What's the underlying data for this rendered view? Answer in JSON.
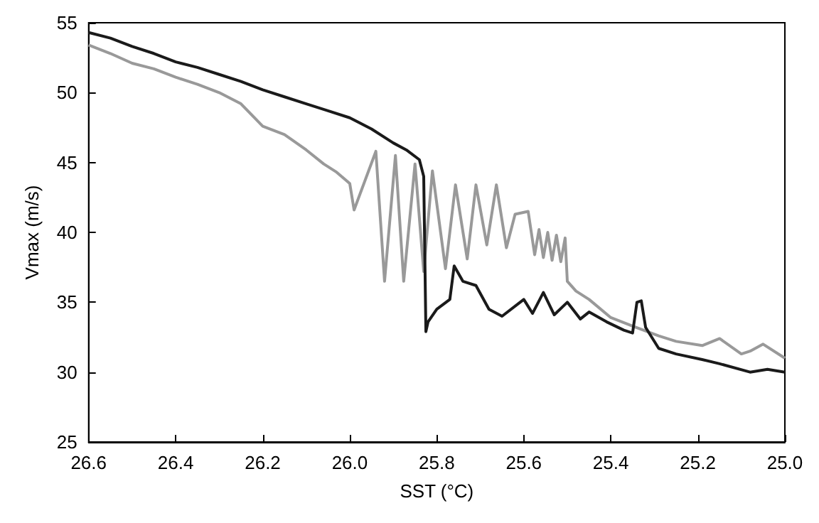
{
  "chart_data": {
    "type": "line",
    "xlabel": "SST (°C)",
    "ylabel": "Vmax (m/s)",
    "xlim": [
      26.6,
      25.0
    ],
    "ylim": [
      25,
      55
    ],
    "xticks": [
      26.6,
      26.4,
      26.2,
      {
        "value": 26,
        "label": "26.0"
      },
      25.8,
      25.6,
      25.4,
      25.2,
      {
        "value": 25,
        "label": "25.0"
      }
    ],
    "yticks": [
      25,
      30,
      35,
      40,
      45,
      50,
      55
    ],
    "series": [
      {
        "color": "#999999",
        "x": [
          26.6,
          26.55,
          26.5,
          26.45,
          26.4,
          26.35,
          26.3,
          26.25,
          26.2,
          26.15,
          26.1,
          26.06,
          26.03,
          26.0,
          25.99,
          25.94,
          25.92,
          25.895,
          25.876,
          25.85,
          25.83,
          25.81,
          25.78,
          25.757,
          25.73,
          25.71,
          25.685,
          25.663,
          25.64,
          25.62,
          25.59,
          25.575,
          25.565,
          25.555,
          25.545,
          25.535,
          25.525,
          25.515,
          25.505,
          25.5,
          25.48,
          25.45,
          25.4,
          25.35,
          25.29,
          25.25,
          25.19,
          25.15,
          25.1,
          25.08,
          25.05,
          25.0
        ],
        "values": [
          53.4,
          52.8,
          52.1,
          51.7,
          51.1,
          50.6,
          50.0,
          49.2,
          47.6,
          47.0,
          45.9,
          44.9,
          44.3,
          43.5,
          41.6,
          45.8,
          36.5,
          45.5,
          36.5,
          44.9,
          37.2,
          44.4,
          37.4,
          43.4,
          38.1,
          43.4,
          39.1,
          43.4,
          38.9,
          41.3,
          41.5,
          38.4,
          40.2,
          38.2,
          40.0,
          38.0,
          39.8,
          37.9,
          39.6,
          36.5,
          35.8,
          35.2,
          33.9,
          33.3,
          32.6,
          32.2,
          31.9,
          32.4,
          31.3,
          31.5,
          32.0,
          31.0
        ]
      },
      {
        "color": "#1a1a1a",
        "x": [
          26.6,
          26.55,
          26.5,
          26.45,
          26.4,
          26.35,
          26.3,
          26.25,
          26.2,
          26.15,
          26.1,
          26.05,
          26.0,
          25.95,
          25.9,
          25.87,
          25.84,
          25.83,
          25.825,
          25.82,
          25.8,
          25.77,
          25.76,
          25.74,
          25.71,
          25.68,
          25.65,
          25.6,
          25.58,
          25.555,
          25.53,
          25.5,
          25.47,
          25.45,
          25.41,
          25.37,
          25.35,
          25.34,
          25.33,
          25.32,
          25.29,
          25.25,
          25.19,
          25.15,
          25.08,
          25.04,
          25.0
        ],
        "values": [
          54.3,
          53.9,
          53.3,
          52.8,
          52.2,
          51.8,
          51.3,
          50.8,
          50.2,
          49.7,
          49.2,
          48.7,
          48.2,
          47.4,
          46.4,
          45.9,
          45.2,
          44.0,
          32.9,
          33.6,
          34.5,
          35.2,
          37.6,
          36.5,
          36.2,
          34.5,
          34.0,
          35.2,
          34.2,
          35.7,
          34.1,
          35.0,
          33.8,
          34.3,
          33.6,
          33.0,
          32.8,
          35.0,
          35.1,
          33.2,
          31.7,
          31.3,
          30.9,
          30.6,
          30.0,
          30.2,
          30.0
        ]
      }
    ]
  }
}
